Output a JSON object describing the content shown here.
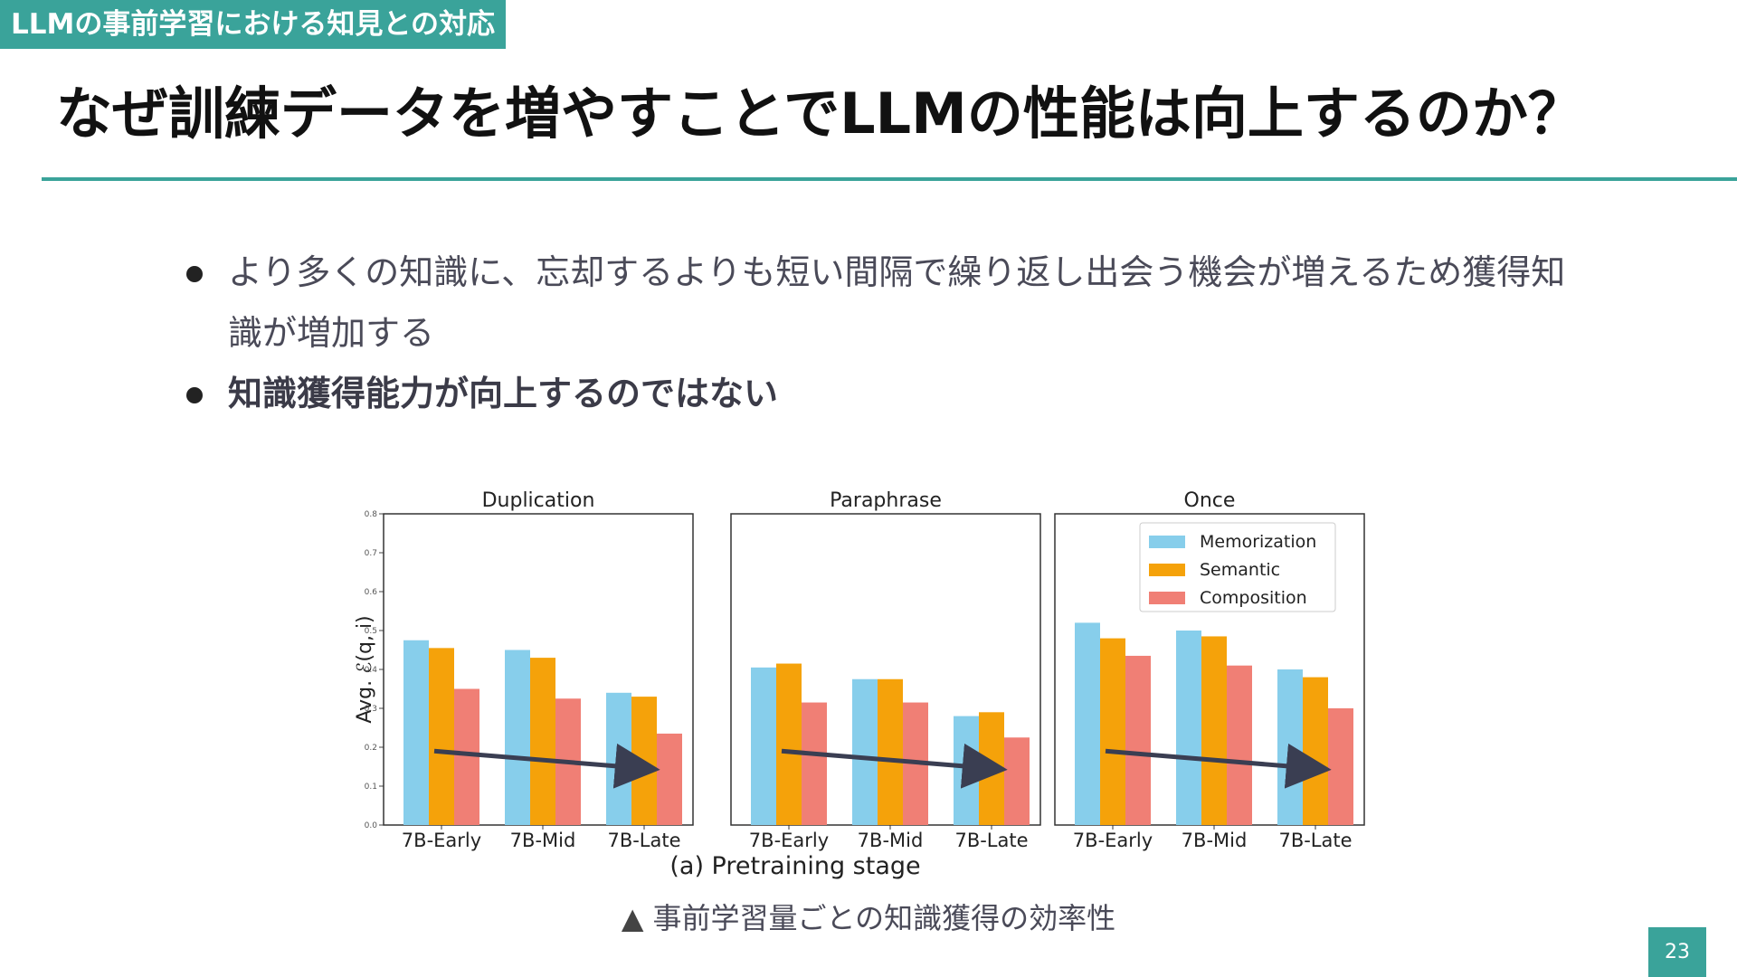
{
  "header": {
    "section_tag": "LLMの事前学習における知見との対応",
    "title": "なぜ訓練データを増やすことでLLMの性能は向上するのか？"
  },
  "bullets": [
    "より多くの知識に、忘却するよりも短い間隔で繰り返し出会う機会が増えるため獲得知識が増加する",
    "知識獲得能力が向上するのではない"
  ],
  "figure": {
    "caption_marker": "▲",
    "caption": "事前学習量ごとの知識獲得の効率性"
  },
  "page_number": "23",
  "colors": {
    "accent": "#3aa39a",
    "memorization": "#87ceeb",
    "semantic": "#f5a20a",
    "composition": "#f07f75",
    "arrow": "#3a3e52"
  },
  "chart_data": {
    "type": "bar",
    "ylabel": "Avg. ℰ(q, i)",
    "xlabel": "(a) Pretraining stage",
    "ylim": [
      0,
      0.8
    ],
    "yticks": [
      "0.0",
      "0.1",
      "0.2",
      "0.3",
      "0.4",
      "0.5",
      "0.6",
      "0.7",
      "0.8"
    ],
    "categories": [
      "7B-Early",
      "7B-Mid",
      "7B-Late"
    ],
    "legend": [
      "Memorization",
      "Semantic",
      "Composition"
    ],
    "legend_location": "upper-right of third panel",
    "grid": false,
    "annotations": "decreasing arrow drawn in each panel from 7B-Early to 7B-Late",
    "panels": [
      {
        "title": "Duplication",
        "series": [
          {
            "name": "Memorization",
            "values": [
              0.475,
              0.45,
              0.34
            ]
          },
          {
            "name": "Semantic",
            "values": [
              0.455,
              0.43,
              0.33
            ]
          },
          {
            "name": "Composition",
            "values": [
              0.35,
              0.325,
              0.235
            ]
          }
        ]
      },
      {
        "title": "Paraphrase",
        "series": [
          {
            "name": "Memorization",
            "values": [
              0.405,
              0.375,
              0.28
            ]
          },
          {
            "name": "Semantic",
            "values": [
              0.415,
              0.375,
              0.29
            ]
          },
          {
            "name": "Composition",
            "values": [
              0.315,
              0.315,
              0.225
            ]
          }
        ]
      },
      {
        "title": "Once",
        "series": [
          {
            "name": "Memorization",
            "values": [
              0.52,
              0.5,
              0.4
            ]
          },
          {
            "name": "Semantic",
            "values": [
              0.48,
              0.485,
              0.38
            ]
          },
          {
            "name": "Composition",
            "values": [
              0.435,
              0.41,
              0.3
            ]
          }
        ]
      }
    ]
  }
}
